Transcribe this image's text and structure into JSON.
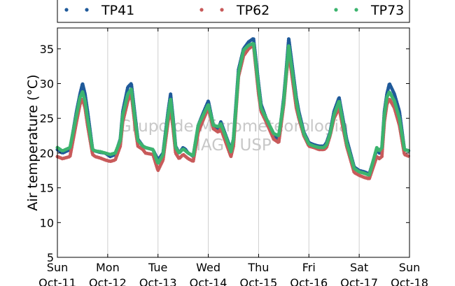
{
  "chart_data": {
    "type": "line",
    "ylabel": "Air temperature (°C)",
    "ylim": [
      5,
      38
    ],
    "yticks": [
      5,
      10,
      15,
      20,
      25,
      30,
      35
    ],
    "xlim": [
      0,
      7
    ],
    "xticks": [
      {
        "x": 0,
        "day": "Sun",
        "date": "Oct-11"
      },
      {
        "x": 1,
        "day": "Mon",
        "date": "Oct-12"
      },
      {
        "x": 2,
        "day": "Tue",
        "date": "Oct-13"
      },
      {
        "x": 3,
        "day": "Wed",
        "date": "Oct-14"
      },
      {
        "x": 4,
        "day": "Thu",
        "date": "Oct-15"
      },
      {
        "x": 5,
        "day": "Fri",
        "date": "Oct-16"
      },
      {
        "x": 6,
        "day": "Sat",
        "date": "Oct-17"
      },
      {
        "x": 7,
        "day": "Sun",
        "date": "Oct-18"
      }
    ],
    "x_unit": "days since Oct-11 00:00",
    "grid": "vertical",
    "legend_placement": "top",
    "watermark": [
      "Grupo de Micrometeorologia",
      "IAG / USP"
    ],
    "series": [
      {
        "name": "TP41",
        "color": "#1f5a9a",
        "x": [
          0,
          0.1,
          0.25,
          0.38,
          0.45,
          0.5,
          0.55,
          0.6,
          0.7,
          0.75,
          0.85,
          0.95,
          1.05,
          1.15,
          1.25,
          1.3,
          1.4,
          1.47,
          1.55,
          1.6,
          1.7,
          1.75,
          1.9,
          2.0,
          2.1,
          2.2,
          2.25,
          2.3,
          2.35,
          2.42,
          2.5,
          2.55,
          2.6,
          2.65,
          2.7,
          2.8,
          2.9,
          3.0,
          3.1,
          3.2,
          3.25,
          3.35,
          3.45,
          3.5,
          3.55,
          3.6,
          3.7,
          3.8,
          3.9,
          4.0,
          4.05,
          4.15,
          4.3,
          4.4,
          4.5,
          4.55,
          4.6,
          4.75,
          4.8,
          4.9,
          5.0,
          5.1,
          5.2,
          5.3,
          5.35,
          5.42,
          5.5,
          5.6,
          5.75,
          5.9,
          6.0,
          6.1,
          6.2,
          6.35,
          6.4,
          6.45,
          6.5,
          6.55,
          6.6,
          6.7,
          6.8,
          6.9,
          7.0
        ],
        "y": [
          20.5,
          20.0,
          20.5,
          26.0,
          28.5,
          30.0,
          28.5,
          26.0,
          20.5,
          20.3,
          20.1,
          20.0,
          19.5,
          19.8,
          22.0,
          26.0,
          29.5,
          30.0,
          25.0,
          22.0,
          21.0,
          20.8,
          20.5,
          19.0,
          20.0,
          26.0,
          28.5,
          25.0,
          21.0,
          20.0,
          20.8,
          20.5,
          20.0,
          19.8,
          19.5,
          24.0,
          25.8,
          27.5,
          24.0,
          23.5,
          24.5,
          22.5,
          20.5,
          22.0,
          27.0,
          32.0,
          35.0,
          36.0,
          36.5,
          30.0,
          27.0,
          25.0,
          22.5,
          22.0,
          28.0,
          32.0,
          36.5,
          28.0,
          26.0,
          23.0,
          21.5,
          21.2,
          21.0,
          21.0,
          21.5,
          23.0,
          26.0,
          28.0,
          22.0,
          18.0,
          17.5,
          17.3,
          17.0,
          20.5,
          20.0,
          20.5,
          26.0,
          28.5,
          30.0,
          28.5,
          26.0,
          20.5,
          20.3
        ]
      },
      {
        "name": "TP62",
        "color": "#c85a5a",
        "x": [
          0,
          0.1,
          0.25,
          0.38,
          0.45,
          0.5,
          0.55,
          0.6,
          0.7,
          0.75,
          0.85,
          0.95,
          1.05,
          1.15,
          1.25,
          1.3,
          1.4,
          1.47,
          1.55,
          1.6,
          1.7,
          1.75,
          1.9,
          2.0,
          2.1,
          2.2,
          2.25,
          2.3,
          2.35,
          2.42,
          2.5,
          2.55,
          2.6,
          2.65,
          2.7,
          2.8,
          2.9,
          3.0,
          3.1,
          3.2,
          3.25,
          3.35,
          3.45,
          3.5,
          3.55,
          3.6,
          3.7,
          3.8,
          3.9,
          4.0,
          4.05,
          4.15,
          4.3,
          4.4,
          4.5,
          4.55,
          4.6,
          4.75,
          4.8,
          4.9,
          5.0,
          5.1,
          5.2,
          5.3,
          5.35,
          5.42,
          5.5,
          5.6,
          5.75,
          5.9,
          6.0,
          6.1,
          6.2,
          6.35,
          6.4,
          6.45,
          6.5,
          6.55,
          6.6,
          6.7,
          6.8,
          6.9,
          7.0
        ],
        "y": [
          19.5,
          19.2,
          19.5,
          24.5,
          27.0,
          27.8,
          26.5,
          24.0,
          19.8,
          19.5,
          19.3,
          19.0,
          18.8,
          19.0,
          21.0,
          24.5,
          27.5,
          28.5,
          23.5,
          21.0,
          20.5,
          20.0,
          19.8,
          17.5,
          19.0,
          24.5,
          26.5,
          23.5,
          20.0,
          19.2,
          19.8,
          19.5,
          19.2,
          19.0,
          18.8,
          23.0,
          24.8,
          26.5,
          23.5,
          23.0,
          23.5,
          21.5,
          19.5,
          21.0,
          26.0,
          31.0,
          34.0,
          35.0,
          35.5,
          28.5,
          26.0,
          24.5,
          22.0,
          21.5,
          27.0,
          31.0,
          34.5,
          26.5,
          25.0,
          22.5,
          21.0,
          20.8,
          20.5,
          20.5,
          20.8,
          22.5,
          25.0,
          26.5,
          21.0,
          17.2,
          16.8,
          16.5,
          16.3,
          19.5,
          19.2,
          19.5,
          24.5,
          27.0,
          27.8,
          26.5,
          24.0,
          19.8,
          19.5
        ]
      },
      {
        "name": "TP73",
        "color": "#3cb46e",
        "x": [
          0,
          0.1,
          0.25,
          0.38,
          0.45,
          0.5,
          0.55,
          0.6,
          0.7,
          0.75,
          0.85,
          0.95,
          1.05,
          1.15,
          1.25,
          1.3,
          1.4,
          1.47,
          1.55,
          1.6,
          1.7,
          1.75,
          1.9,
          2.0,
          2.1,
          2.2,
          2.25,
          2.3,
          2.35,
          2.42,
          2.5,
          2.55,
          2.6,
          2.65,
          2.7,
          2.8,
          2.9,
          3.0,
          3.1,
          3.2,
          3.25,
          3.35,
          3.45,
          3.5,
          3.55,
          3.6,
          3.7,
          3.8,
          3.9,
          4.0,
          4.05,
          4.15,
          4.3,
          4.4,
          4.5,
          4.55,
          4.6,
          4.75,
          4.8,
          4.9,
          5.0,
          5.1,
          5.2,
          5.3,
          5.35,
          5.42,
          5.5,
          5.6,
          5.75,
          5.9,
          6.0,
          6.1,
          6.2,
          6.35,
          6.4,
          6.45,
          6.5,
          6.55,
          6.6,
          6.7,
          6.8,
          6.9,
          7.0
        ],
        "y": [
          20.8,
          20.3,
          20.8,
          25.5,
          28.0,
          28.8,
          27.5,
          25.0,
          20.5,
          20.3,
          20.2,
          20.0,
          19.8,
          20.0,
          21.8,
          25.5,
          28.5,
          29.2,
          24.5,
          21.8,
          21.0,
          20.8,
          20.5,
          18.5,
          19.8,
          25.5,
          27.8,
          24.5,
          20.8,
          20.0,
          20.6,
          20.3,
          20.0,
          19.8,
          19.6,
          24.0,
          25.5,
          27.0,
          24.0,
          23.8,
          24.2,
          22.3,
          20.2,
          22.0,
          26.5,
          31.5,
          34.8,
          35.5,
          35.8,
          29.5,
          26.5,
          25.0,
          22.8,
          22.5,
          27.5,
          31.5,
          35.5,
          27.5,
          25.5,
          22.8,
          21.3,
          21.0,
          20.8,
          20.8,
          21.2,
          22.8,
          25.5,
          27.5,
          21.5,
          17.8,
          17.3,
          17.1,
          16.8,
          20.8,
          20.3,
          20.8,
          25.5,
          28.0,
          28.8,
          27.5,
          25.0,
          20.5,
          20.3
        ]
      }
    ]
  }
}
